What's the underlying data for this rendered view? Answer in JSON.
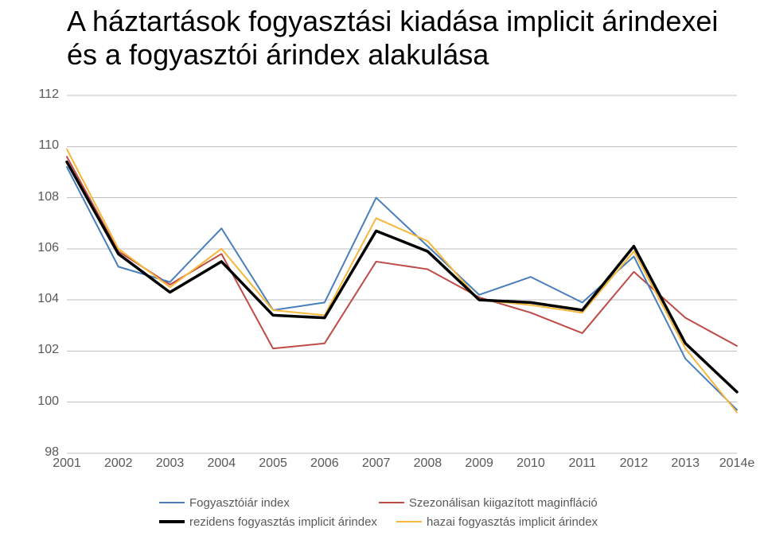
{
  "title": "A háztartások fogyasztási kiadása implicit árindexei és a fogyasztói árindex alakulása",
  "chart": {
    "type": "line",
    "background_color": "#ffffff",
    "grid_color": "#bfbfbf",
    "axis_label_color": "#595959",
    "title_fontsize": 36,
    "tick_fontsize": 16,
    "legend_fontsize": 15,
    "ylim": [
      98,
      112
    ],
    "ytick_step": 2,
    "yticks": [
      98,
      100,
      102,
      104,
      106,
      108,
      110,
      112
    ],
    "x_categories": [
      "2001",
      "2002",
      "2003",
      "2004",
      "2005",
      "2006",
      "2007",
      "2008",
      "2009",
      "2010",
      "2011",
      "2012",
      "2013",
      "2014e"
    ],
    "series_order": [
      "seasonal",
      "cpi",
      "domestic",
      "resident"
    ],
    "series": {
      "cpi": {
        "label": "Fogyasztóiár index",
        "color": "#4a7ebb",
        "width": 2,
        "values": [
          109.2,
          105.3,
          104.7,
          106.8,
          103.6,
          103.9,
          108.0,
          106.1,
          104.2,
          104.9,
          103.9,
          105.7,
          101.7,
          99.7
        ]
      },
      "seasonal": {
        "label": "Szezonálisan kiigazított maginfláció",
        "color": "#be4b48",
        "width": 2,
        "values": [
          109.6,
          105.9,
          104.6,
          105.8,
          102.1,
          102.3,
          105.5,
          105.2,
          104.1,
          103.5,
          102.7,
          105.1,
          103.3,
          102.2
        ]
      },
      "resident": {
        "label": "rezidens fogyasztás implicit árindex",
        "color": "#000000",
        "width": 3.5,
        "values": [
          109.4,
          105.8,
          104.3,
          105.5,
          103.4,
          103.3,
          106.7,
          105.9,
          104.0,
          103.9,
          103.6,
          106.1,
          102.3,
          100.4
        ]
      },
      "domestic": {
        "label": "hazai fogyasztás implicit árindex",
        "color": "#f6b73c",
        "width": 2,
        "values": [
          109.9,
          106.0,
          104.5,
          106.0,
          103.6,
          103.4,
          107.2,
          106.3,
          104.0,
          103.8,
          103.5,
          105.9,
          102.1,
          99.6
        ]
      }
    },
    "legend": {
      "layout": [
        [
          "cpi",
          "seasonal"
        ],
        [
          "resident",
          "domestic"
        ]
      ]
    }
  }
}
